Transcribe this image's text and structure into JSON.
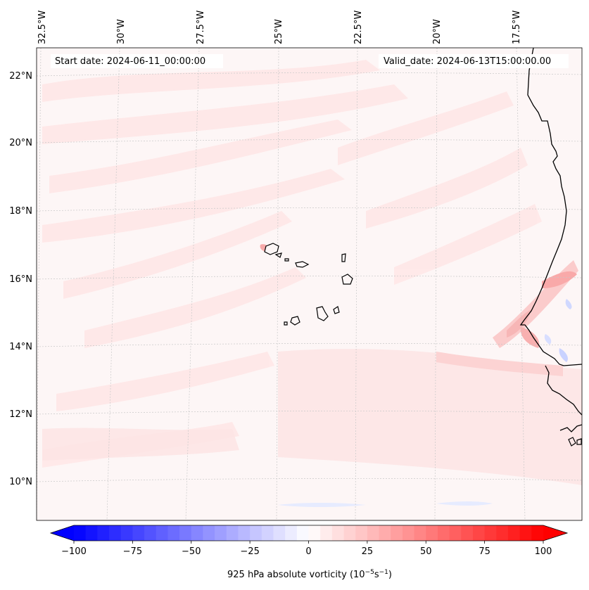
{
  "map": {
    "start_date": "Start date: 2024-06-11_00:00:00",
    "valid_date": "Valid_date: 2024-06-13T15:00:00.00",
    "lon_labels": [
      "32.5°W",
      "30°W",
      "27.5°W",
      "25°W",
      "22.5°W",
      "20°W",
      "17.5°W"
    ],
    "lat_labels": [
      "22°N",
      "20°N",
      "18°N",
      "16°N",
      "14°N",
      "12°N",
      "10°N"
    ],
    "variable": "925 hPa absolute vorticity",
    "units_base": "(10",
    "units_exp1": "−5",
    "units_mid": "s",
    "units_exp2": "−1",
    "units_close": ")"
  },
  "colorbar": {
    "min": -100,
    "max": 100,
    "ticks": [
      "−100",
      "−75",
      "−50",
      "−25",
      "0",
      "25",
      "50",
      "75",
      "100"
    ],
    "neg_color": "#0000ff",
    "pos_color": "#ff0000"
  }
}
